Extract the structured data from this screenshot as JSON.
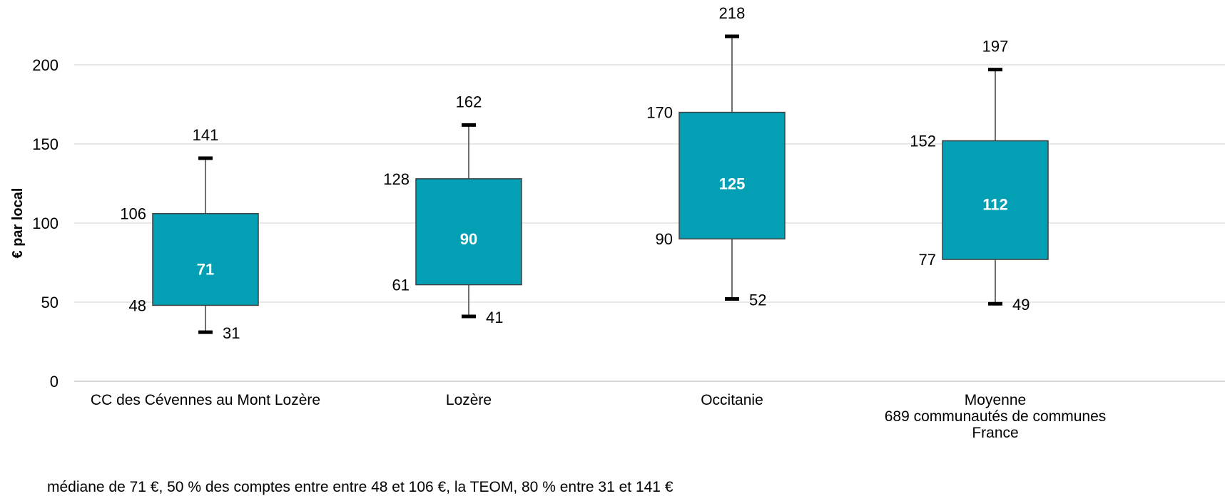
{
  "chart_data": {
    "type": "box",
    "ylabel": "€ par local",
    "ylim": [
      0,
      200
    ],
    "yticks": [
      0,
      50,
      100,
      150,
      200
    ],
    "grid": true,
    "box_color": "#039fb5",
    "categories": [
      {
        "label_lines": [
          "CC des Cévennes au Mont Lozère"
        ],
        "min": 31,
        "q1": 48,
        "median": 71,
        "q3": 106,
        "max": 141
      },
      {
        "label_lines": [
          "Lozère"
        ],
        "min": 41,
        "q1": 61,
        "median": 90,
        "q3": 128,
        "max": 162
      },
      {
        "label_lines": [
          "Occitanie"
        ],
        "min": 52,
        "q1": 90,
        "median": 125,
        "q3": 170,
        "max": 218
      },
      {
        "label_lines": [
          "Moyenne",
          "689 communautés de communes",
          "France"
        ],
        "min": 49,
        "q1": 77,
        "median": 112,
        "q3": 152,
        "max": 197
      }
    ]
  },
  "footnote": "médiane de 71 €, 50 % des comptes entre entre 48 et 106 €, la TEOM, 80 % entre 31 et 141 €"
}
